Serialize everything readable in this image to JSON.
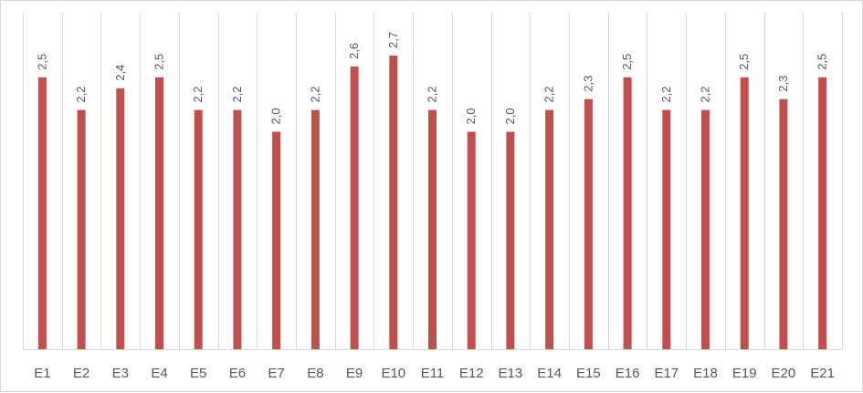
{
  "chart_data": {
    "type": "bar",
    "categories": [
      "E1",
      "E2",
      "E3",
      "E4",
      "E5",
      "E6",
      "E7",
      "E8",
      "E9",
      "E10",
      "E11",
      "E12",
      "E13",
      "E14",
      "E15",
      "E16",
      "E17",
      "E18",
      "E19",
      "E20",
      "E21"
    ],
    "series": [
      {
        "values": [
          2.5,
          2.2,
          2.4,
          2.5,
          2.2,
          2.2,
          2.0,
          2.2,
          2.6,
          2.7,
          2.2,
          2.0,
          2.0,
          2.2,
          2.3,
          2.5,
          2.2,
          2.2,
          2.5,
          2.3,
          2.5
        ],
        "labels": [
          "2,5",
          "2,2",
          "2,4",
          "2,5",
          "2,2",
          "2,2",
          "2,0",
          "2,2",
          "2,6",
          "2,7",
          "2,2",
          "2,0",
          "2,0",
          "2,2",
          "2,3",
          "2,5",
          "2,2",
          "2,2",
          "2,5",
          "2,3",
          "2,5"
        ],
        "color": "#c0504d"
      }
    ],
    "title": "",
    "xlabel": "",
    "ylabel": "",
    "ylim": [
      0,
      2.7
    ],
    "grid": "vertical category separators",
    "legend": "none",
    "data_labels": "rotated vertical above bars",
    "colors": {
      "bar": "#c0504d",
      "grid": "#d9d9d9",
      "text": "#595959"
    }
  }
}
